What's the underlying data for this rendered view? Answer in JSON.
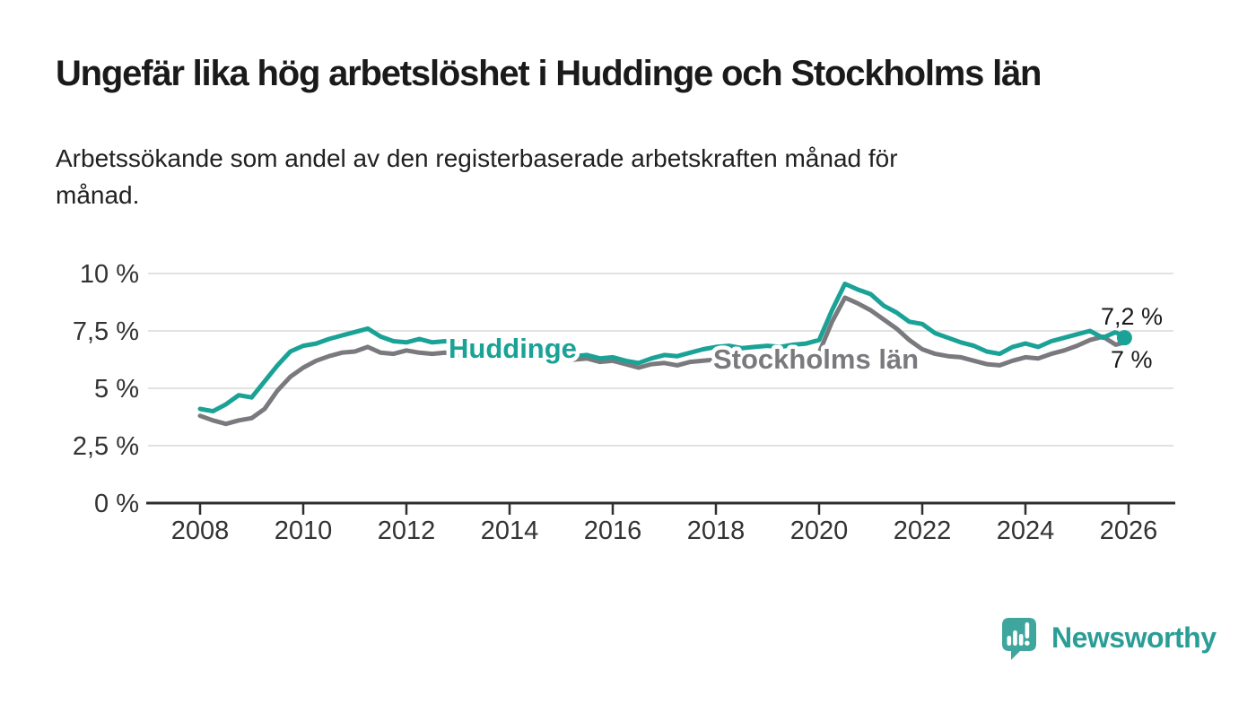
{
  "title": "Ungefär lika hög arbetslöshet i Huddinge och Stockholms län",
  "subtitle_lines": [
    "Arbetssökande som andel av den registerbaserade arbetskraften månad för",
    "månad."
  ],
  "branding": {
    "name": "Newsworthy",
    "icon": "newsworthy-speech-bubble-bar-chart-icon",
    "text_color": "#2A9E96",
    "icon_color": "#3EA69C"
  },
  "colors": {
    "background": "#ffffff",
    "title_text": "#1a1a1a",
    "axis_text": "#333333",
    "gridline": "#d9d9d9",
    "axis_line": "#2e2e2e",
    "huddinge": "#1AA296",
    "stockholm": "#7A7A7E"
  },
  "chart_data": {
    "type": "line",
    "title": "Ungefär lika hög arbetslöshet i Huddinge och Stockholms län",
    "subtitle": "Arbetssökande som andel av den registerbaserade arbetskraften månad för månad.",
    "xlabel": "",
    "ylabel": "",
    "grid": true,
    "legend_position": "inline-labels-on-lines",
    "x_axis": {
      "tick_labels": [
        "2008",
        "2010",
        "2012",
        "2014",
        "2016",
        "2018",
        "2020",
        "2022",
        "2024",
        "2026"
      ],
      "tick_values": [
        2008,
        2010,
        2012,
        2014,
        2016,
        2018,
        2020,
        2022,
        2024,
        2026
      ],
      "range": [
        2007,
        2026.9
      ]
    },
    "y_axis": {
      "tick_labels": [
        "0 %",
        "2,5 %",
        "5 %",
        "7,5 %",
        "10 %"
      ],
      "tick_values": [
        0,
        2.5,
        5,
        7.5,
        10
      ],
      "range": [
        0,
        10
      ],
      "unit": "%"
    },
    "x_start": 2008.0,
    "x_step": 0.25,
    "x_end": 2025.92,
    "series": [
      {
        "name": "Huddinge",
        "color": "#1AA296",
        "end_label": "7,2 %",
        "end_value": 7.2,
        "end_dot": true,
        "values": [
          4.1,
          4.0,
          4.3,
          4.7,
          4.6,
          5.3,
          6.0,
          6.6,
          6.85,
          6.95,
          7.15,
          7.3,
          7.45,
          7.6,
          7.25,
          7.05,
          7.0,
          7.15,
          7.0,
          7.05,
          7.0,
          6.85,
          6.95,
          6.85,
          6.8,
          6.7,
          6.6,
          6.5,
          6.45,
          6.4,
          6.45,
          6.3,
          6.35,
          6.2,
          6.1,
          6.3,
          6.45,
          6.4,
          6.55,
          6.7,
          6.8,
          6.85,
          6.75,
          6.8,
          6.85,
          6.8,
          6.9,
          6.95,
          7.1,
          8.4,
          9.55,
          9.3,
          9.1,
          8.6,
          8.3,
          7.9,
          7.8,
          7.4,
          7.2,
          7.0,
          6.85,
          6.6,
          6.5,
          6.8,
          6.95,
          6.8,
          7.05,
          7.2,
          7.35,
          7.5,
          7.2,
          7.45,
          7.2
        ]
      },
      {
        "name": "Stockholms län",
        "color": "#7A7A7E",
        "end_label": "7 %",
        "end_value": 7.0,
        "end_dot": false,
        "values": [
          3.8,
          3.6,
          3.45,
          3.6,
          3.7,
          4.1,
          4.9,
          5.5,
          5.9,
          6.2,
          6.4,
          6.55,
          6.6,
          6.8,
          6.55,
          6.5,
          6.65,
          6.55,
          6.5,
          6.55,
          6.45,
          6.55,
          6.45,
          6.4,
          6.35,
          6.3,
          6.3,
          6.25,
          6.3,
          6.25,
          6.3,
          6.15,
          6.2,
          6.05,
          5.9,
          6.05,
          6.1,
          6.0,
          6.15,
          6.2,
          6.25,
          6.2,
          6.3,
          6.3,
          6.35,
          6.3,
          6.4,
          6.45,
          6.55,
          7.9,
          8.95,
          8.7,
          8.4,
          8.0,
          7.6,
          7.1,
          6.7,
          6.5,
          6.4,
          6.35,
          6.2,
          6.05,
          6.0,
          6.2,
          6.35,
          6.3,
          6.5,
          6.65,
          6.85,
          7.1,
          7.25,
          6.9,
          7.0
        ]
      }
    ]
  }
}
